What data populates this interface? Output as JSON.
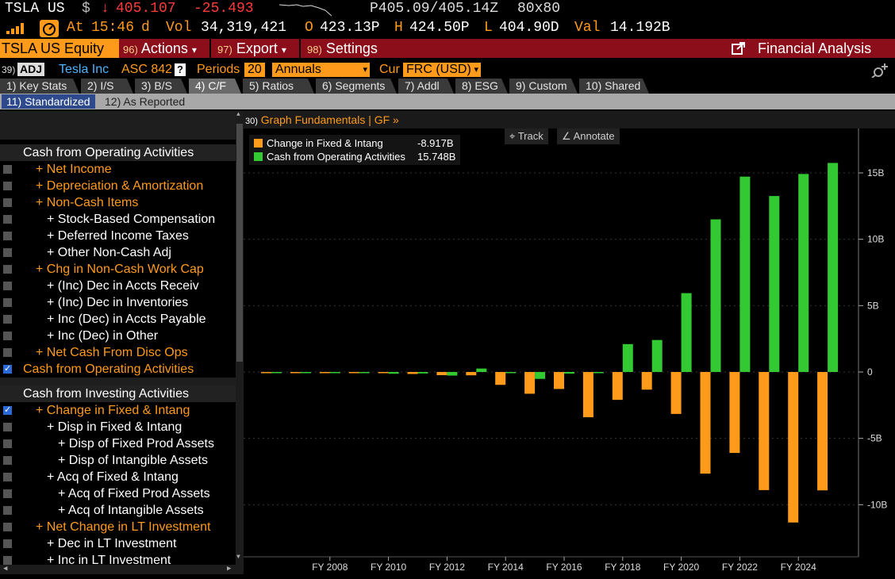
{
  "quote": {
    "ticker": "TSLA US",
    "currency_symbol": "$",
    "down_arrow": "↓",
    "last_price": "405.107",
    "net_change": "-25.493",
    "bid_ask": "P405.09/405.14Z",
    "size": "80x80",
    "at_label": "At",
    "time": "15:46",
    "time_suffix": "d",
    "vol_label": "Vol",
    "volume": "34,319,421",
    "open_label": "O",
    "open": "423.13P",
    "high_label": "H",
    "high": "424.50P",
    "low_label": "L",
    "low": "404.90D",
    "val_label": "Val",
    "value": "14.192B"
  },
  "menubar": {
    "security": "TSLA US Equity",
    "items": [
      {
        "num": "96)",
        "label": "Actions",
        "arrow": "▾"
      },
      {
        "num": "97)",
        "label": "Export",
        "arrow": "▾"
      },
      {
        "num": "98)",
        "label": "Settings",
        "arrow": ""
      }
    ],
    "function_title": "Financial Analysis"
  },
  "security_row": {
    "num": "39)",
    "adj": "ADJ",
    "company": "Tesla Inc",
    "standard": "ASC 842",
    "help": "?",
    "periods_label": "Periods",
    "periods_value": "20",
    "period_type": "Annuals",
    "cur_label": "Cur",
    "cur_value": "FRC (USD)"
  },
  "tabs": [
    {
      "label": "1) Key Stats",
      "active": false
    },
    {
      "label": "2) I/S",
      "active": false
    },
    {
      "label": "3) B/S",
      "active": false
    },
    {
      "label": "4) C/F",
      "active": true
    },
    {
      "label": "5) Ratios",
      "active": false
    },
    {
      "label": "6) Segments",
      "active": false
    },
    {
      "label": "7) Addl",
      "active": false
    },
    {
      "label": "8) ESG",
      "active": false
    },
    {
      "label": "9) Custom",
      "active": false
    },
    {
      "label": "10) Shared",
      "active": false
    }
  ],
  "subtabs": [
    {
      "label": "11) Standardized",
      "active": true
    },
    {
      "label": "12) As Reported",
      "active": false
    }
  ],
  "left_panel": {
    "rows": [
      {
        "text": "Cash from Operating Activities",
        "kind": "header",
        "indent": 0
      },
      {
        "text": "+ Net Income",
        "kind": "orange",
        "indent": 1,
        "checked": false
      },
      {
        "text": "+ Depreciation & Amortization",
        "kind": "orange",
        "indent": 1,
        "checked": false
      },
      {
        "text": "+ Non-Cash Items",
        "kind": "orange",
        "indent": 1,
        "checked": false
      },
      {
        "text": "+ Stock-Based Compensation",
        "kind": "white",
        "indent": 2,
        "checked": false
      },
      {
        "text": "+ Deferred Income Taxes",
        "kind": "white",
        "indent": 2,
        "checked": false
      },
      {
        "text": "+ Other Non-Cash Adj",
        "kind": "white",
        "indent": 2,
        "checked": false
      },
      {
        "text": "+ Chg in Non-Cash Work Cap",
        "kind": "orange",
        "indent": 1,
        "checked": false
      },
      {
        "text": "+ (Inc) Dec in Accts Receiv",
        "kind": "white",
        "indent": 2,
        "checked": false
      },
      {
        "text": "+ (Inc) Dec in Inventories",
        "kind": "white",
        "indent": 2,
        "checked": false
      },
      {
        "text": "+ Inc (Dec) in Accts Payable",
        "kind": "white",
        "indent": 2,
        "checked": false
      },
      {
        "text": "+ Inc (Dec) in Other",
        "kind": "white",
        "indent": 2,
        "checked": false
      },
      {
        "text": "+ Net Cash From Disc Ops",
        "kind": "orange",
        "indent": 1,
        "checked": false
      },
      {
        "text": "Cash from Operating Activities",
        "kind": "orange",
        "indent": 0,
        "checked": true
      },
      {
        "text": "Cash from Investing Activities",
        "kind": "header",
        "indent": 0
      },
      {
        "text": "+ Change in Fixed & Intang",
        "kind": "orange",
        "indent": 1,
        "checked": true
      },
      {
        "text": "+ Disp in Fixed & Intang",
        "kind": "white",
        "indent": 2,
        "checked": false
      },
      {
        "text": "+ Disp of Fixed Prod Assets",
        "kind": "white",
        "indent": 3,
        "checked": false
      },
      {
        "text": "+ Disp of Intangible Assets",
        "kind": "white",
        "indent": 3,
        "checked": false
      },
      {
        "text": "+ Acq of Fixed & Intang",
        "kind": "white",
        "indent": 2,
        "checked": false
      },
      {
        "text": "+ Acq of Fixed Prod Assets",
        "kind": "white",
        "indent": 3,
        "checked": false
      },
      {
        "text": "+ Acq of Intangible Assets",
        "kind": "white",
        "indent": 3,
        "checked": false
      },
      {
        "text": "+ Net Change in LT Investment",
        "kind": "orange",
        "indent": 1,
        "checked": false
      },
      {
        "text": "+ Dec in LT Investment",
        "kind": "white",
        "indent": 2,
        "checked": false
      },
      {
        "text": "+ Inc in LT Investment",
        "kind": "white",
        "indent": 2,
        "checked": false
      }
    ]
  },
  "chart_header": {
    "num": "30)",
    "title": "Graph Fundamentals | GF »"
  },
  "chart_tools": {
    "track": "Track",
    "annotate": "Annotate"
  },
  "legend": [
    {
      "name": "Change in Fixed & Intang",
      "value": "-8.917B",
      "color": "#ff9a1a"
    },
    {
      "name": "Cash from Operating Activities",
      "value": "15.748B",
      "color": "#33c933"
    }
  ],
  "chart_data": {
    "type": "bar",
    "categories": [
      "FY 2006",
      "FY 2007",
      "FY 2008",
      "FY 2009",
      "FY 2010",
      "FY 2011",
      "FY 2012",
      "FY 2013",
      "FY 2014",
      "FY 2015",
      "FY 2016",
      "FY 2017",
      "FY 2018",
      "FY 2019",
      "FY 2020",
      "FY 2021",
      "FY 2022",
      "FY 2023",
      "FY 2024",
      "FY 2025"
    ],
    "x_tick_labels": [
      "FY 2008",
      "FY 2010",
      "FY 2012",
      "FY 2014",
      "FY 2016",
      "FY 2018",
      "FY 2020",
      "FY 2022",
      "FY 2024"
    ],
    "series": [
      {
        "name": "Change in Fixed & Intang",
        "color": "#ff9a1a",
        "values": [
          -0.03,
          -0.03,
          -0.04,
          -0.02,
          -0.05,
          -0.15,
          -0.24,
          -0.25,
          -0.97,
          -1.64,
          -1.28,
          -3.41,
          -2.1,
          -1.33,
          -3.16,
          -7.66,
          -6.1,
          -8.9,
          -11.34,
          -8.92
        ]
      },
      {
        "name": "Cash from Operating Activities",
        "color": "#33c933",
        "values": [
          -0.04,
          -0.03,
          -0.07,
          -0.07,
          -0.13,
          -0.11,
          -0.27,
          0.26,
          -0.06,
          -0.52,
          -0.12,
          -0.06,
          2.1,
          2.41,
          5.94,
          11.5,
          14.72,
          13.26,
          14.92,
          15.75
        ]
      }
    ],
    "y_ticks": [
      15,
      10,
      5,
      0,
      -5,
      -10
    ],
    "y_tick_labels": [
      "15B",
      "10B",
      "5B",
      "0",
      "-5B",
      "-10B"
    ],
    "ylim": [
      -13,
      17.5
    ],
    "grid": true,
    "legend_position": "top-left"
  }
}
